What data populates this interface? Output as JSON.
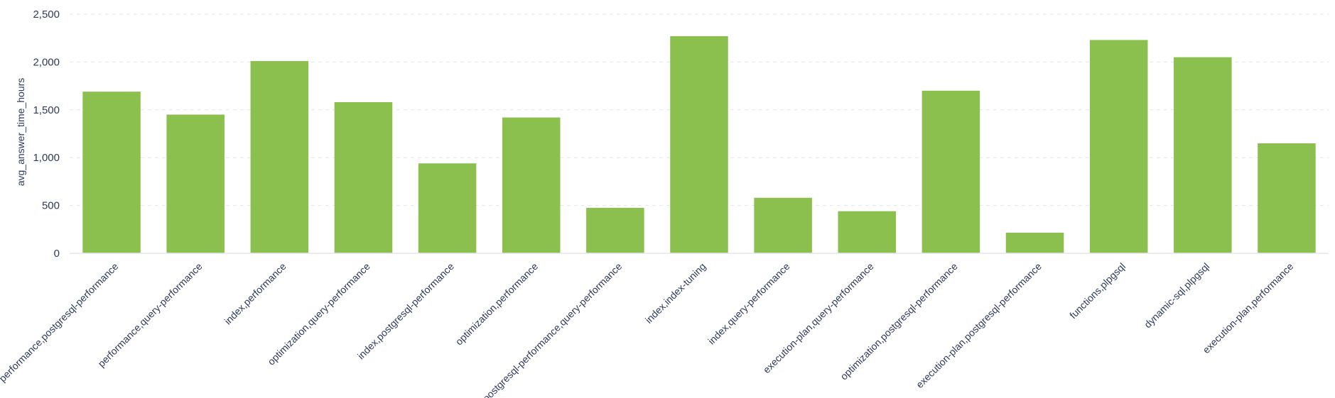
{
  "chart_data": {
    "type": "bar",
    "title": "",
    "xlabel": "",
    "ylabel": "avg_answer_time_hours",
    "ylim": [
      0,
      2500
    ],
    "yticks": [
      0,
      500,
      1000,
      1500,
      2000,
      2500
    ],
    "ytick_labels": [
      "0",
      "500",
      "1,000",
      "1,500",
      "2,000",
      "2,500"
    ],
    "grid": true,
    "legend": "none",
    "bar_color": "#8bbf4e",
    "categories": [
      "performance,postgresql-performance",
      "performance,query-performance",
      "index,performance",
      "optimization,query-performance",
      "index,postgresql-performance",
      "optimization,performance",
      "postgresql-performance,query-performance",
      "index,index-tuning",
      "index,query-performance",
      "execution-plan,query-performance",
      "optimization,postgresql-performance",
      "execution-plan,postgresql-performance",
      "functions,plpgsql",
      "dynamic-sql,plpgsql",
      "execution-plan,performance"
    ],
    "values": [
      1690,
      1450,
      2010,
      1580,
      940,
      1420,
      475,
      2270,
      580,
      440,
      1700,
      215,
      2230,
      2050,
      1150
    ]
  }
}
